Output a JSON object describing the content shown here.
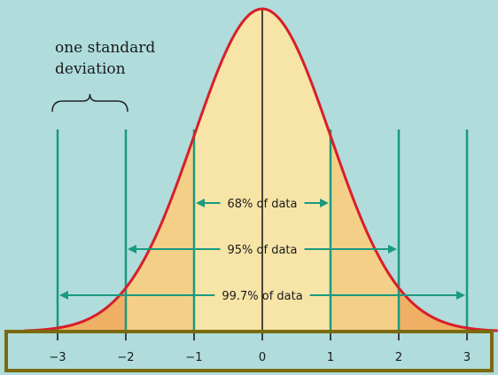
{
  "colors": {
    "background": "#b0dcdc",
    "curve": "#d81e2a",
    "fill_inner": "#f7e4a7",
    "fill_mid": "#f4cf88",
    "fill_outer": "#efb065",
    "guide": "#1a9a80",
    "axis_box": "#7a6a10",
    "text": "#1a1a1a"
  },
  "annotation": {
    "line1": "one standard",
    "line2": "deviation"
  },
  "ranges": [
    {
      "label": "68% of data",
      "from": -1,
      "to": 1
    },
    {
      "label": "95% of data",
      "from": -2,
      "to": 2
    },
    {
      "label": "99.7% of data",
      "from": -3,
      "to": 3
    }
  ],
  "axis": {
    "ticks": [
      -3,
      -2,
      -1,
      0,
      1,
      2,
      3
    ],
    "tick_labels": [
      "−3",
      "−2",
      "−1",
      "0",
      "1",
      "2",
      "3"
    ]
  }
}
